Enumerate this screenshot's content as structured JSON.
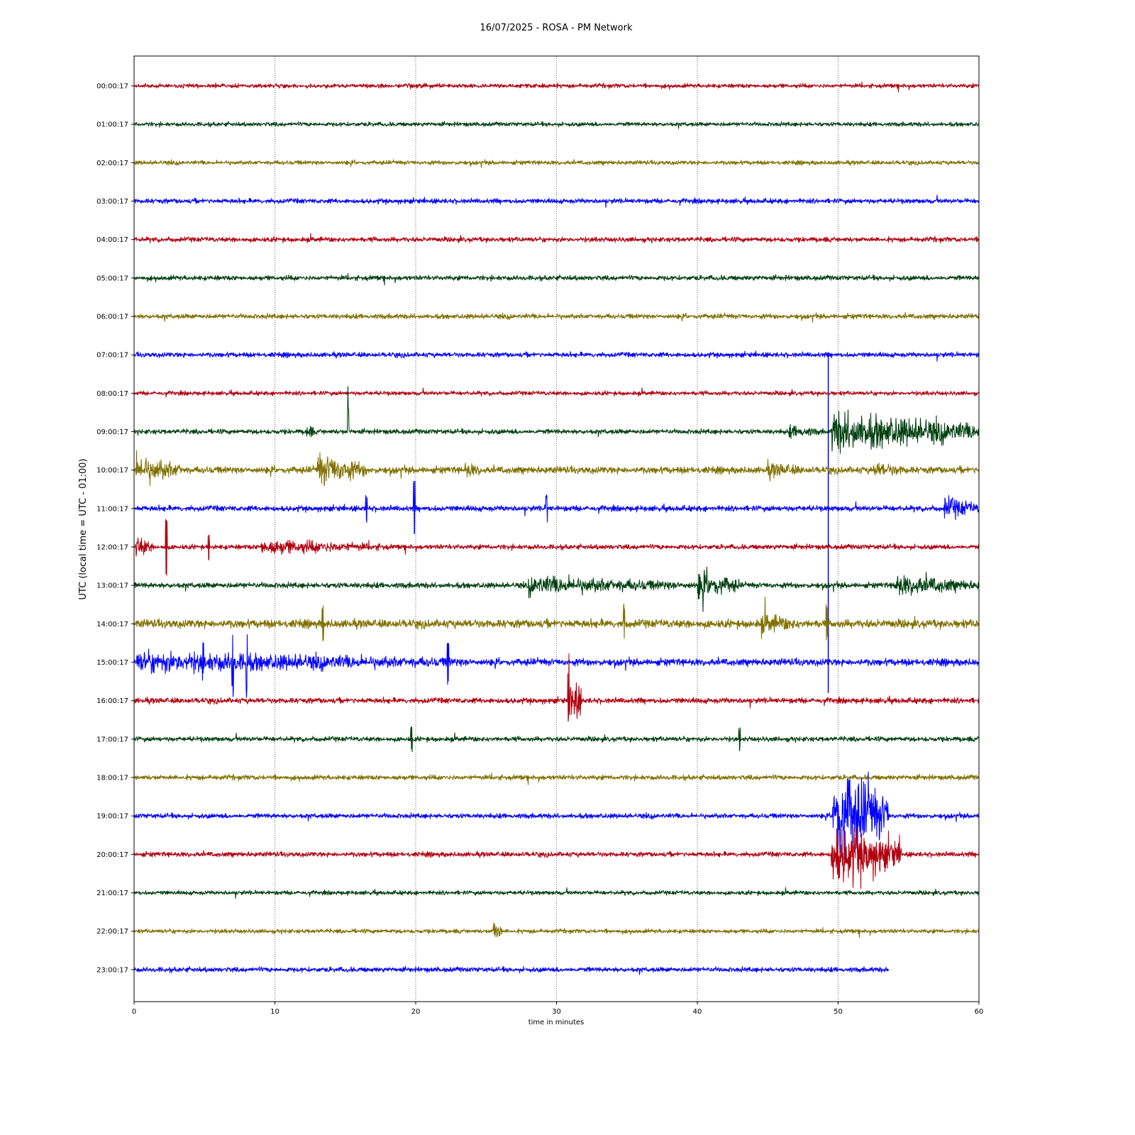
{
  "chart_data": {
    "type": "line",
    "title": "16/07/2025 - ROSA - PM Network",
    "xlabel": "time in minutes",
    "ylabel": "UTC (local time = UTC - 01:00)",
    "xlim": [
      0,
      60
    ],
    "xticks": [
      0,
      10,
      20,
      30,
      40,
      50,
      60
    ],
    "grid": "vertical dotted at x ticks",
    "legend": "none",
    "trace_colors": [
      "#b0000f",
      "#004010",
      "#807000",
      "#0000ff"
    ],
    "series": [
      {
        "label": "00:00:17",
        "end_minute": 60,
        "noise": 3,
        "events": []
      },
      {
        "label": "01:00:17",
        "end_minute": 60,
        "noise": 3,
        "events": []
      },
      {
        "label": "02:00:17",
        "end_minute": 60,
        "noise": 3,
        "events": []
      },
      {
        "label": "03:00:17",
        "end_minute": 60,
        "noise": 3.5,
        "events": []
      },
      {
        "label": "04:00:17",
        "end_minute": 60,
        "noise": 3.5,
        "events": []
      },
      {
        "label": "05:00:17",
        "end_minute": 60,
        "noise": 3.5,
        "events": []
      },
      {
        "label": "06:00:17",
        "end_minute": 60,
        "noise": 3.5,
        "events": []
      },
      {
        "label": "07:00:17",
        "end_minute": 60,
        "noise": 3.5,
        "events": [
          {
            "t": 49.3,
            "kind": "line",
            "to": 8.8
          }
        ]
      },
      {
        "label": "08:00:17",
        "end_minute": 60,
        "noise": 3,
        "events": []
      },
      {
        "label": "09:00:17",
        "end_minute": 60,
        "noise": 3.5,
        "events": [
          {
            "t": 12.2,
            "kind": "burst",
            "amp": 14,
            "dur": 0.6
          },
          {
            "t": 15.2,
            "kind": "spike",
            "amp": 30
          },
          {
            "t": 46.5,
            "kind": "burst",
            "amp": 10,
            "dur": 2.5
          },
          {
            "t": 49.5,
            "kind": "burst",
            "amp": 30,
            "dur": 10.5
          }
        ]
      },
      {
        "label": "10:00:17",
        "end_minute": 60,
        "noise": 5,
        "events": [
          {
            "t": 0.1,
            "kind": "burst",
            "amp": 22,
            "dur": 3.5
          },
          {
            "t": 13,
            "kind": "burst",
            "amp": 25,
            "dur": 3.5
          },
          {
            "t": 23.5,
            "kind": "burst",
            "amp": 12,
            "dur": 1.5
          },
          {
            "t": 45,
            "kind": "burst",
            "amp": 12,
            "dur": 3
          },
          {
            "t": 52.5,
            "kind": "burst",
            "amp": 12,
            "dur": 3
          }
        ]
      },
      {
        "label": "11:00:17",
        "end_minute": 60,
        "noise": 4,
        "events": [
          {
            "t": 19.9,
            "kind": "spike",
            "amp": 35
          },
          {
            "t": 29.3,
            "kind": "spike",
            "amp": 18
          },
          {
            "t": 16.5,
            "kind": "spike",
            "amp": 16
          },
          {
            "t": 57.5,
            "kind": "burst",
            "amp": 18,
            "dur": 2.5
          }
        ]
      },
      {
        "label": "12:00:17",
        "end_minute": 60,
        "noise": 3.5,
        "events": [
          {
            "t": 0.1,
            "kind": "burst",
            "amp": 18,
            "dur": 1.2
          },
          {
            "t": 2.3,
            "kind": "spike",
            "amp": 38
          },
          {
            "t": 5.3,
            "kind": "spike",
            "amp": 18
          },
          {
            "t": 9,
            "kind": "burst",
            "amp": 12,
            "dur": 9
          }
        ]
      },
      {
        "label": "13:00:17",
        "end_minute": 60,
        "noise": 4,
        "events": [
          {
            "t": 28,
            "kind": "burst",
            "amp": 14,
            "dur": 12
          },
          {
            "t": 40,
            "kind": "burst",
            "amp": 22,
            "dur": 3
          },
          {
            "t": 54,
            "kind": "burst",
            "amp": 16,
            "dur": 6
          }
        ]
      },
      {
        "label": "14:00:17",
        "end_minute": 60,
        "noise": 6,
        "events": [
          {
            "t": 13.4,
            "kind": "spike",
            "amp": 22
          },
          {
            "t": 34.8,
            "kind": "spike",
            "amp": 24
          },
          {
            "t": 44.5,
            "kind": "burst",
            "amp": 16,
            "dur": 3
          },
          {
            "t": 49.2,
            "kind": "spike",
            "amp": 24
          }
        ]
      },
      {
        "label": "15:00:17",
        "end_minute": 60,
        "noise": 5,
        "events": [
          {
            "t": 0.2,
            "kind": "burst",
            "amp": 16,
            "dur": 24
          },
          {
            "t": 4.9,
            "kind": "spike",
            "amp": 32
          },
          {
            "t": 7.0,
            "kind": "spike",
            "amp": 38
          },
          {
            "t": 8.0,
            "kind": "spike",
            "amp": 40
          },
          {
            "t": 22.3,
            "kind": "spike",
            "amp": 28
          }
        ]
      },
      {
        "label": "16:00:17",
        "end_minute": 60,
        "noise": 4,
        "events": [
          {
            "t": 30.8,
            "kind": "burst",
            "amp": 45,
            "dur": 1
          }
        ]
      },
      {
        "label": "17:00:17",
        "end_minute": 60,
        "noise": 3.5,
        "events": [
          {
            "t": 19.7,
            "kind": "spike",
            "amp": 16
          },
          {
            "t": 43.0,
            "kind": "spike",
            "amp": 14
          }
        ]
      },
      {
        "label": "18:00:17",
        "end_minute": 60,
        "noise": 3.5,
        "events": []
      },
      {
        "label": "19:00:17",
        "end_minute": 60,
        "noise": 3.5,
        "events": [
          {
            "t": 49.6,
            "kind": "burst",
            "amp": 75,
            "dur": 4,
            "offset": 54
          }
        ]
      },
      {
        "label": "20:00:17",
        "end_minute": 60,
        "noise": 3.5,
        "events": [
          {
            "t": 49.5,
            "kind": "burst",
            "amp": 48,
            "dur": 5
          }
        ]
      },
      {
        "label": "21:00:17",
        "end_minute": 60,
        "noise": 3,
        "events": []
      },
      {
        "label": "22:00:17",
        "end_minute": 60,
        "noise": 3,
        "events": [
          {
            "t": 25.5,
            "kind": "burst",
            "amp": 22,
            "dur": 0.6
          }
        ]
      },
      {
        "label": "23:00:17",
        "end_minute": 53.6,
        "noise": 3.5,
        "events": []
      }
    ]
  }
}
